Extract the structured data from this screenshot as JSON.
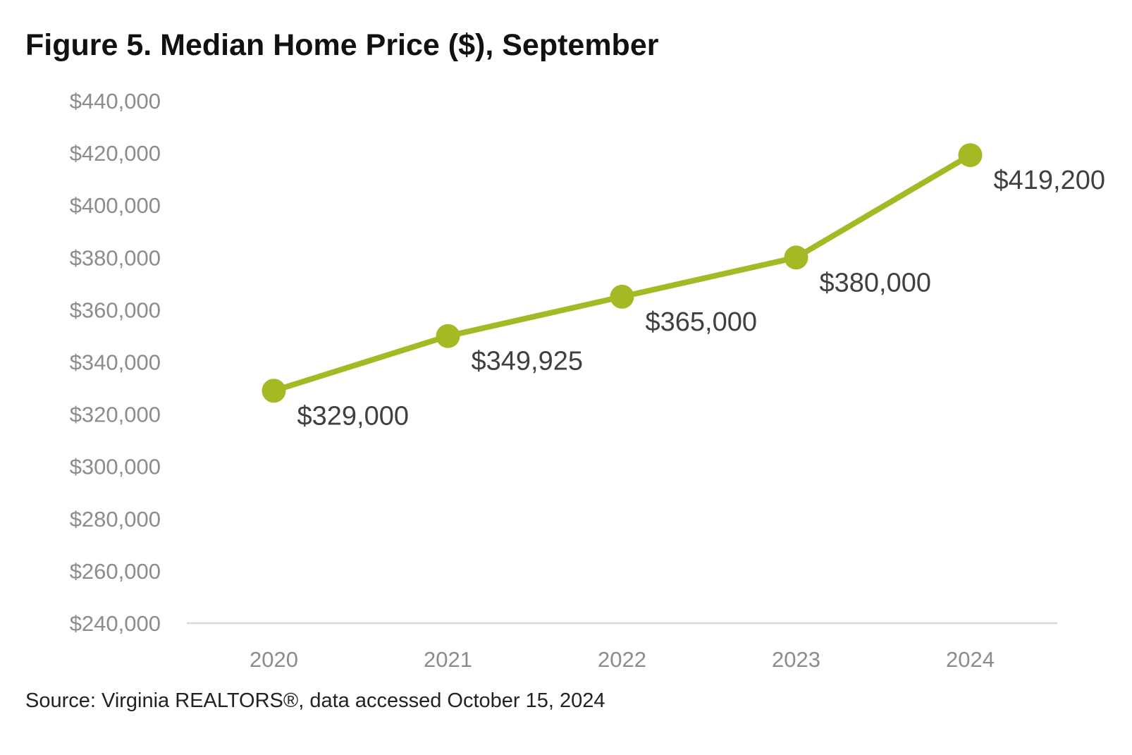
{
  "title": "Figure 5. Median Home Price ($), September",
  "source": "Source: Virginia REALTORS®, data accessed October 15, 2024",
  "chart_data": {
    "type": "line",
    "categories": [
      "2020",
      "2021",
      "2022",
      "2023",
      "2024"
    ],
    "series": [
      {
        "values": [
          329000,
          349925,
          365000,
          380000,
          419200
        ],
        "data_labels": [
          "$329,000",
          "$349,925",
          "$365,000",
          "$380,000",
          "$419,200"
        ]
      }
    ],
    "y_ticks": [
      "$240,000",
      "$260,000",
      "$280,000",
      "$300,000",
      "$320,000",
      "$340,000",
      "$360,000",
      "$380,000",
      "$400,000",
      "$420,000",
      "$440,000"
    ],
    "ylim": [
      240000,
      440000
    ],
    "grid": false,
    "legend": "none",
    "colors": {
      "line": "#a4b923",
      "axis": "#d9d9d9",
      "tick_text": "#8c8c8c",
      "label_text": "#404040"
    }
  }
}
